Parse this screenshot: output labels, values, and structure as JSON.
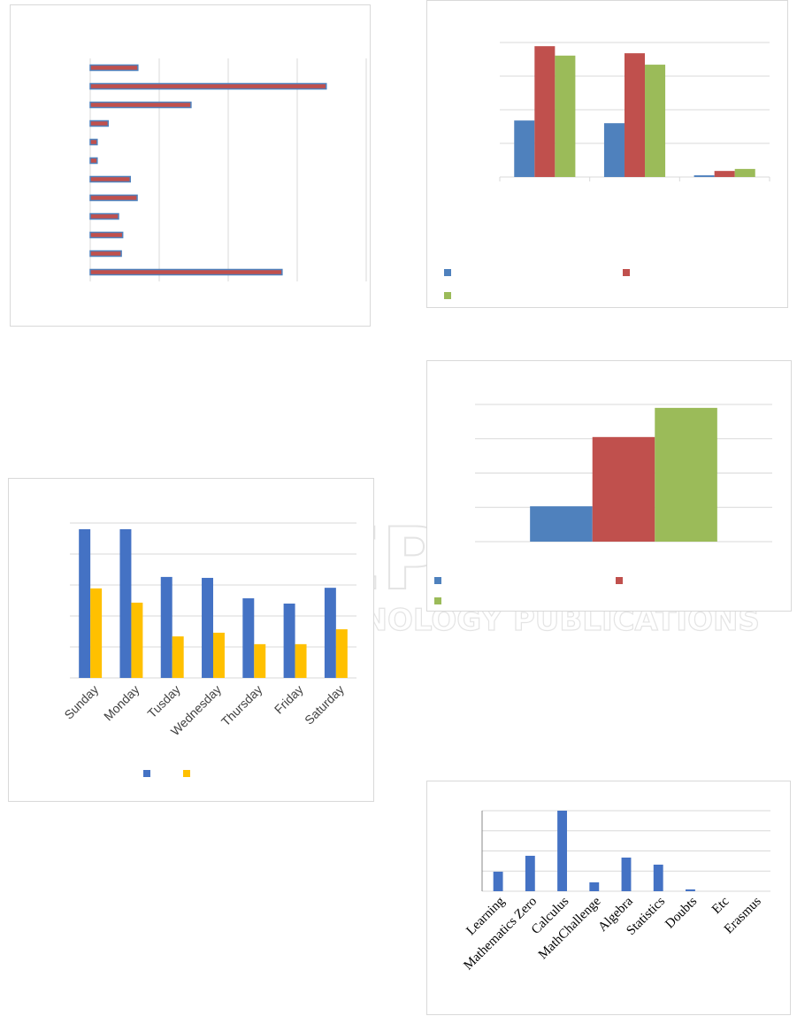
{
  "chart_data": [
    {
      "type": "bar",
      "orientation": "horizontal",
      "categories": [
        null,
        null,
        null,
        null,
        null,
        null,
        null,
        null,
        null,
        null,
        null,
        null
      ],
      "values": [
        0.69,
        3.42,
        1.46,
        0.26,
        0.1,
        0.1,
        0.58,
        0.68,
        0.41,
        0.47,
        0.45,
        2.78
      ],
      "color": "#c0504d",
      "edge_color": "#4f81bd",
      "xlim": [
        0,
        4
      ],
      "xticks": [
        0,
        1,
        2,
        3,
        4
      ],
      "grid": true
    },
    {
      "type": "bar",
      "categories": [
        null,
        null,
        null
      ],
      "series": [
        {
          "name": null,
          "color": "#4f81bd",
          "values": [
            1.68,
            1.6,
            0.05
          ]
        },
        {
          "name": null,
          "color": "#c0504d",
          "values": [
            3.89,
            3.68,
            0.18
          ]
        },
        {
          "name": null,
          "color": "#9bbb59",
          "values": [
            3.61,
            3.34,
            0.24
          ]
        }
      ],
      "ylim": [
        0,
        4
      ],
      "yticks": [
        0,
        1,
        2,
        3,
        4
      ],
      "grid": true
    },
    {
      "type": "bar",
      "categories": [
        null
      ],
      "series": [
        {
          "name": null,
          "color": "#4f81bd",
          "values": [
            1.03
          ]
        },
        {
          "name": null,
          "color": "#c0504d",
          "values": [
            3.05
          ]
        },
        {
          "name": null,
          "color": "#9bbb59",
          "values": [
            3.9
          ]
        }
      ],
      "ylim": [
        0,
        4
      ],
      "yticks": [
        0,
        1,
        2,
        3,
        4
      ],
      "grid": true
    },
    {
      "type": "bar",
      "categories": [
        "Sunday",
        "Monday",
        "Tusday",
        "Wednesday",
        "Thursday",
        "Friday",
        "Saturday"
      ],
      "series": [
        {
          "name": null,
          "color": "#4472c4",
          "values": [
            4.8,
            4.8,
            3.26,
            3.23,
            2.57,
            2.4,
            2.91
          ]
        },
        {
          "name": null,
          "color": "#ffc000",
          "values": [
            2.89,
            2.43,
            1.34,
            1.46,
            1.09,
            1.09,
            1.57
          ]
        }
      ],
      "ylim": [
        0,
        5
      ],
      "yticks": [
        0,
        1,
        2,
        3,
        4,
        5
      ],
      "grid": true
    },
    {
      "type": "bar",
      "categories": [
        "Learning",
        "Mathematics Zero",
        "Calculus",
        "MathChallenge",
        "Algebra",
        "Statistics",
        "Doubts",
        "Etc",
        "Erasmus"
      ],
      "values": [
        0.97,
        1.76,
        4.0,
        0.44,
        1.67,
        1.32,
        0.09,
        0,
        0
      ],
      "color": "#4472c4",
      "ylim": [
        0,
        4
      ],
      "yticks": [
        0,
        1,
        2,
        3,
        4
      ],
      "grid": true
    }
  ],
  "watermark": {
    "title": "SCITEPRESS",
    "subtitle": "SCIENCE AND TECHNOLOGY PUBLICATIONS"
  }
}
